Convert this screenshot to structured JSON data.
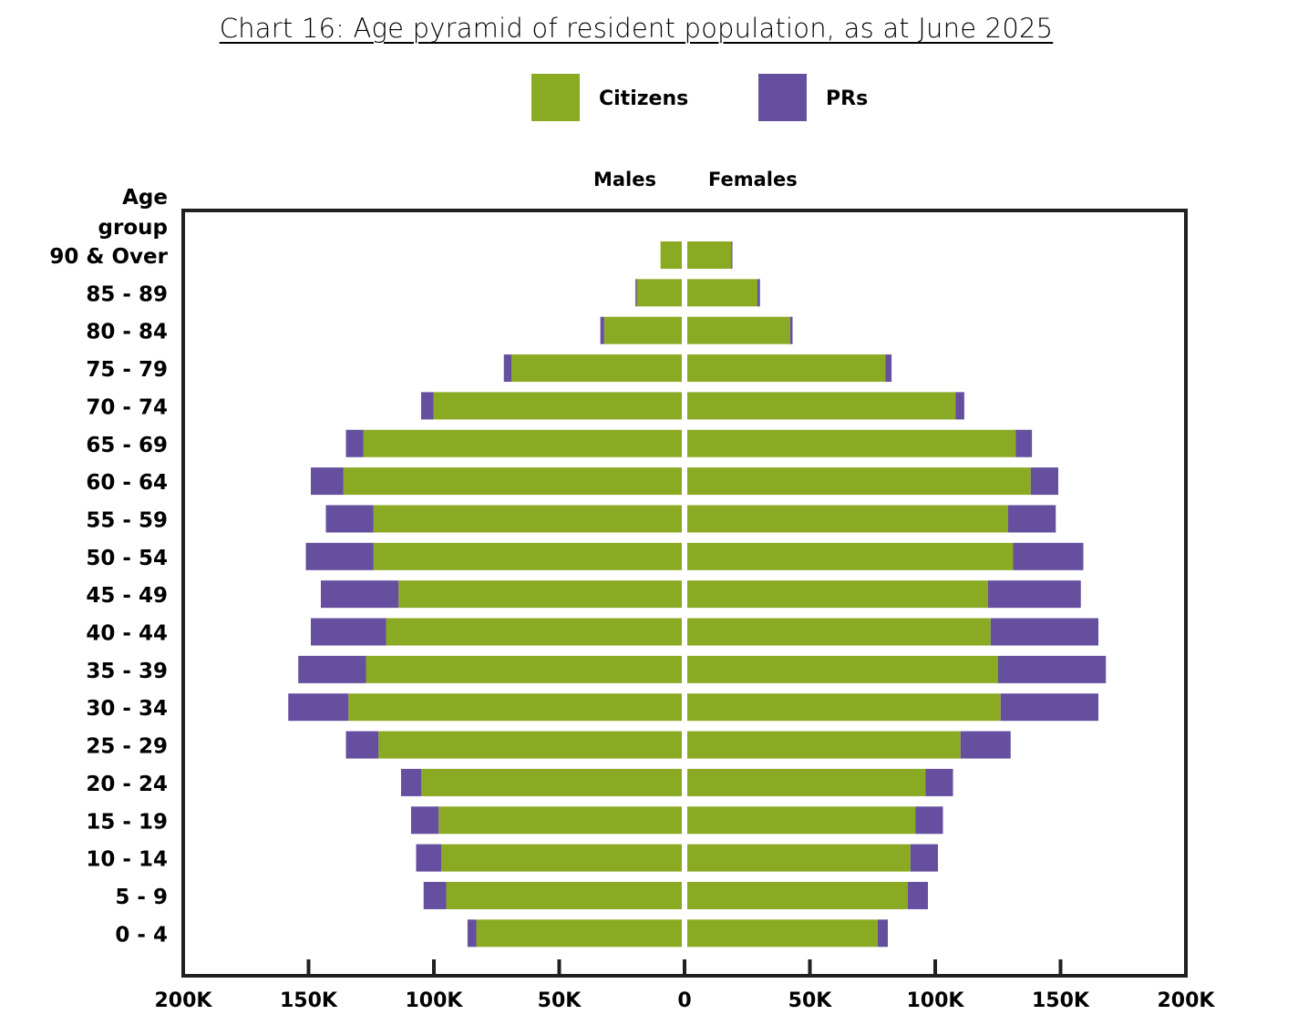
{
  "chart_data": {
    "type": "bar",
    "title": "Chart 16: Age pyramid of resident population, as at June 2025",
    "legend": {
      "placement": "top-center",
      "items": [
        {
          "name": "Citizens",
          "color": "#8BAA24"
        },
        {
          "name": "PRs",
          "color": "#654F9E"
        }
      ]
    },
    "side_labels": {
      "left": "Males",
      "right": "Females"
    },
    "ylabel": "Age group",
    "xlim": [
      -200000,
      200000
    ],
    "x_ticks": [
      {
        "value": -200000,
        "label": "200K"
      },
      {
        "value": -150000,
        "label": "150K"
      },
      {
        "value": -100000,
        "label": "100K"
      },
      {
        "value": -50000,
        "label": "50K"
      },
      {
        "value": 0,
        "label": "0"
      },
      {
        "value": 50000,
        "label": "50K"
      },
      {
        "value": 100000,
        "label": "100K"
      },
      {
        "value": 150000,
        "label": "150K"
      },
      {
        "value": 200000,
        "label": "200K"
      }
    ],
    "categories": [
      "90 & Over",
      "85 - 89",
      "80 - 84",
      "75 - 79",
      "70 - 74",
      "65 - 69",
      "60 - 64",
      "55 - 59",
      "50 - 54",
      "45 - 49",
      "40 - 44",
      "35 - 39",
      "30 - 34",
      "25 - 29",
      "20 - 24",
      "15 - 19",
      "10 - 14",
      "5 - 9",
      "0 - 4"
    ],
    "series": [
      {
        "name": "Citizens",
        "sex": "Males",
        "color": "#8BAA24",
        "values": [
          8500,
          18000,
          31000,
          68000,
          99000,
          127000,
          135000,
          123000,
          123000,
          113000,
          118000,
          126000,
          133000,
          121000,
          104000,
          97000,
          96000,
          94000,
          82000
        ]
      },
      {
        "name": "PRs",
        "sex": "Males",
        "color": "#654F9E",
        "values": [
          0,
          500,
          1500,
          3000,
          5000,
          7000,
          13000,
          19000,
          27000,
          31000,
          30000,
          27000,
          24000,
          13000,
          8000,
          11000,
          10000,
          9000,
          3500
        ]
      },
      {
        "name": "Citizens",
        "sex": "Females",
        "color": "#8BAA24",
        "values": [
          17500,
          28000,
          41000,
          79000,
          107000,
          131000,
          137000,
          128000,
          130000,
          120000,
          121000,
          124000,
          125000,
          109000,
          95000,
          91000,
          89000,
          88000,
          76000
        ]
      },
      {
        "name": "PRs",
        "sex": "Females",
        "color": "#654F9E",
        "values": [
          500,
          1000,
          1000,
          2500,
          3500,
          6500,
          11000,
          19000,
          28000,
          37000,
          43000,
          43000,
          39000,
          20000,
          11000,
          11000,
          11000,
          8000,
          4000
        ]
      }
    ]
  }
}
